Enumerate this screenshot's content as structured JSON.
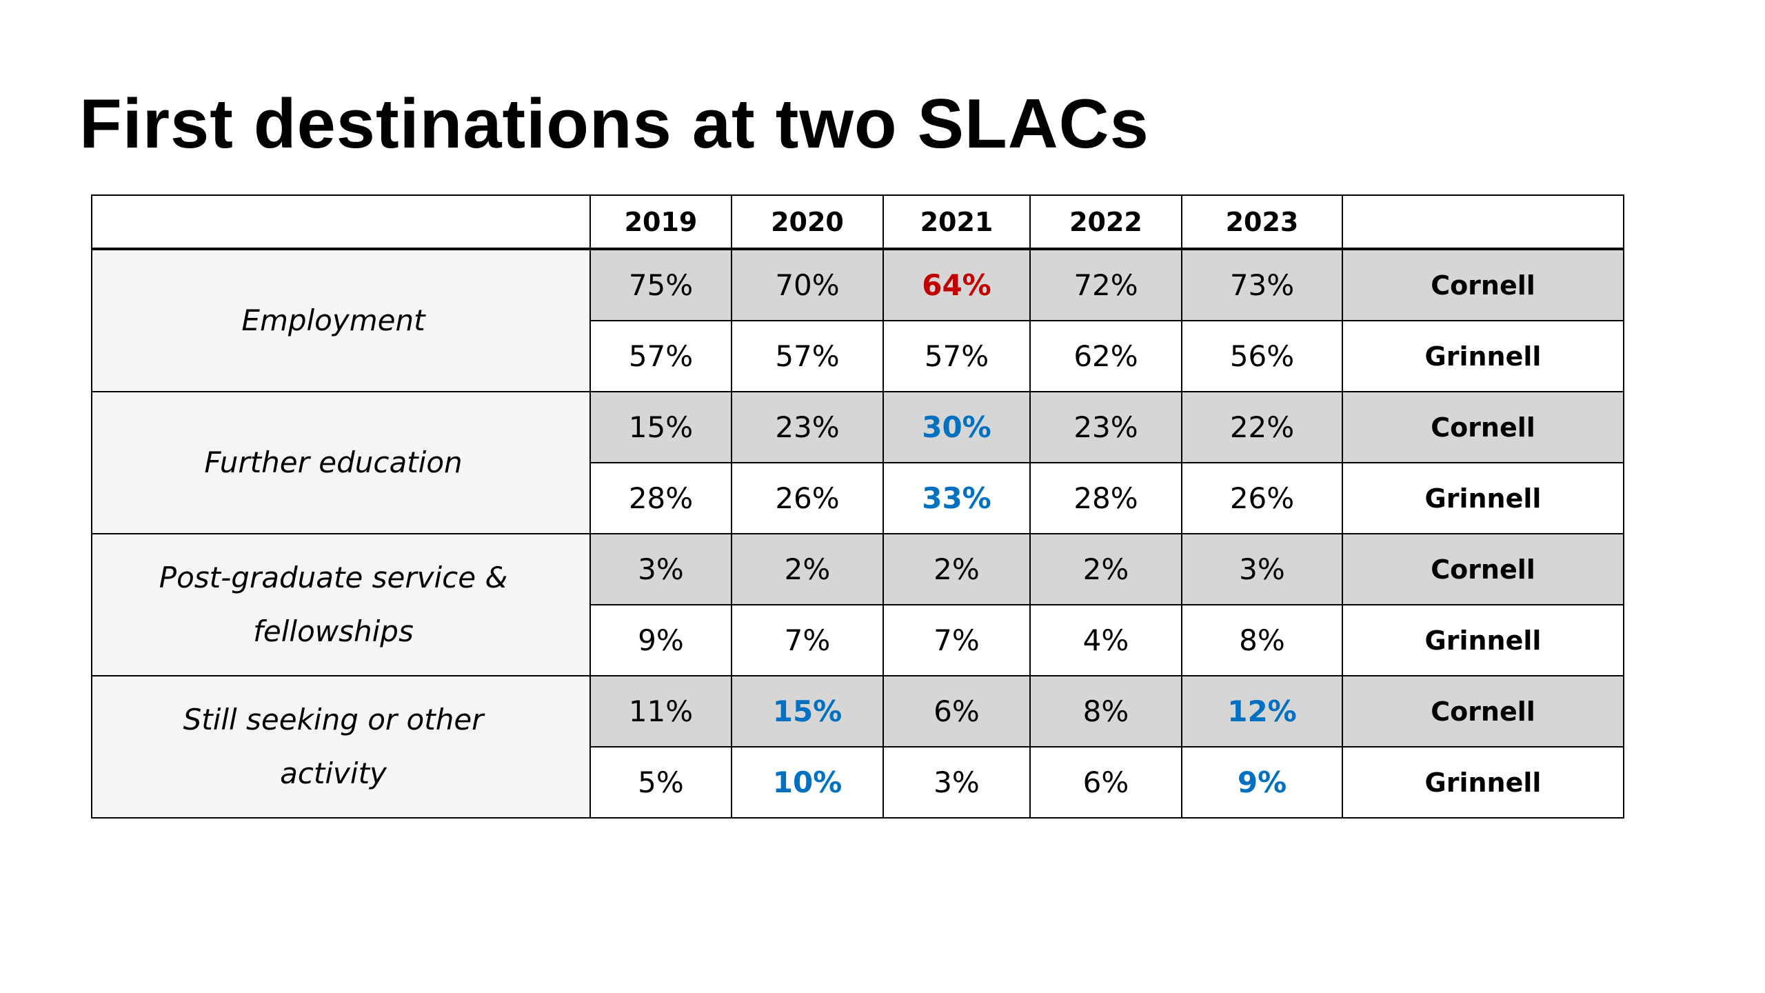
{
  "title": "First destinations at two SLACs",
  "years": [
    "2019",
    "2020",
    "2021",
    "2022",
    "2023"
  ],
  "categories": [
    {
      "label": "Employment",
      "rows": [
        {
          "institution": "Cornell",
          "values": [
            "75%",
            "70%",
            "64%",
            "72%",
            "73%"
          ]
        },
        {
          "institution": "Grinnell",
          "values": [
            "57%",
            "57%",
            "57%",
            "62%",
            "56%"
          ]
        }
      ]
    },
    {
      "label": "Further education",
      "rows": [
        {
          "institution": "Cornell",
          "values": [
            "15%",
            "23%",
            "30%",
            "23%",
            "22%"
          ]
        },
        {
          "institution": "Grinnell",
          "values": [
            "28%",
            "26%",
            "33%",
            "28%",
            "26%"
          ]
        }
      ]
    },
    {
      "label": "Post-graduate service &\nfellowships",
      "rows": [
        {
          "institution": "Cornell",
          "values": [
            "3%",
            "2%",
            "2%",
            "2%",
            "3%"
          ]
        },
        {
          "institution": "Grinnell",
          "values": [
            "9%",
            "7%",
            "7%",
            "4%",
            "8%"
          ]
        }
      ]
    },
    {
      "label": "Still seeking or other\nactivity",
      "rows": [
        {
          "institution": "Cornell",
          "values": [
            "11%",
            "15%",
            "6%",
            "8%",
            "12%"
          ]
        },
        {
          "institution": "Grinnell",
          "values": [
            "5%",
            "10%",
            "3%",
            "6%",
            "9%"
          ]
        }
      ]
    }
  ],
  "colors": {
    "highlight_red": "#c00000",
    "highlight_blue": "#0070c0",
    "cornell_row_fill": "#d6d6d6",
    "category_fill": "#f5f5f5"
  }
}
